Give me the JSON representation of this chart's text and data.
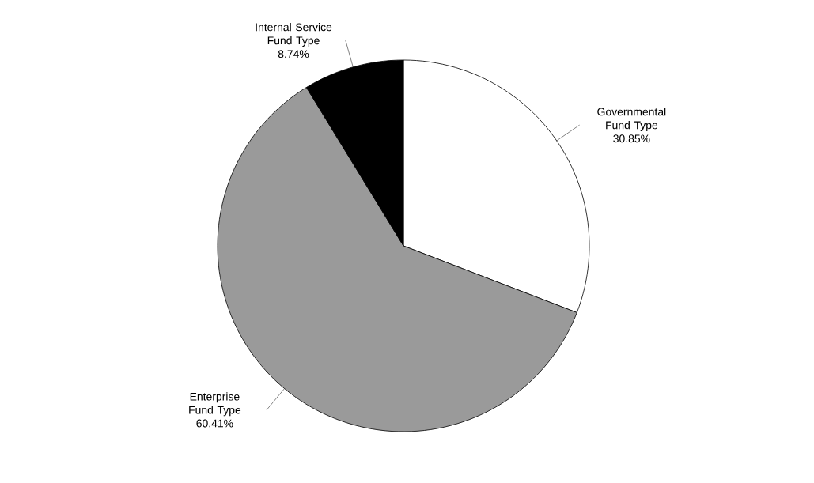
{
  "chart_data": {
    "type": "pie",
    "categories": [
      "Governmental Fund Type",
      "Enterprise Fund Type",
      "Internal Service Fund Type"
    ],
    "values": [
      30.85,
      60.41,
      8.74
    ],
    "value_labels": [
      "30.85%",
      "60.41%",
      "8.74%"
    ],
    "colors": [
      "#ffffff",
      "#9a9a9a",
      "#000000"
    ]
  }
}
